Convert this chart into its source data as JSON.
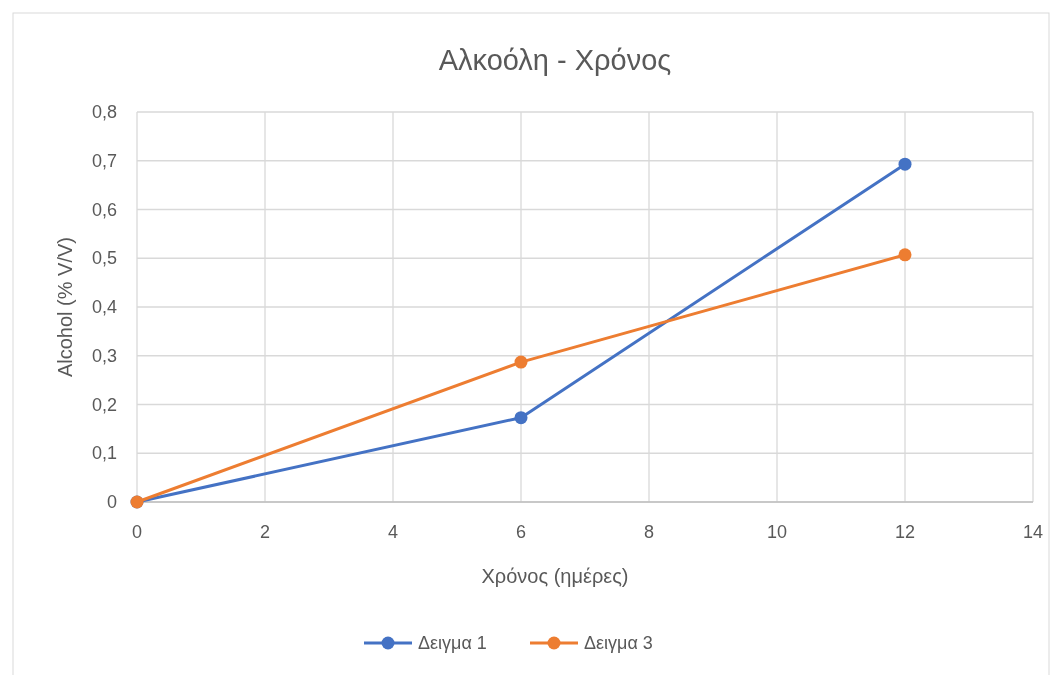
{
  "chart_data": {
    "type": "line",
    "title": "Αλκοόλη - Χρόνος",
    "xlabel": "Χρόνος (ημέρες)",
    "ylabel": "Alcohol (% V/V)",
    "xlim": [
      0,
      14
    ],
    "xticks": [
      0,
      2,
      4,
      6,
      8,
      10,
      12,
      14
    ],
    "ylim": [
      0,
      0.8
    ],
    "yticks": [
      {
        "value": 0,
        "label": "0"
      },
      {
        "value": 0.1,
        "label": "0,1"
      },
      {
        "value": 0.2,
        "label": "0,2"
      },
      {
        "value": 0.3,
        "label": "0,3"
      },
      {
        "value": 0.4,
        "label": "0,4"
      },
      {
        "value": 0.5,
        "label": "0,5"
      },
      {
        "value": 0.6,
        "label": "0,6"
      },
      {
        "value": 0.7,
        "label": "0,7"
      },
      {
        "value": 0.8,
        "label": "0,8"
      }
    ],
    "grid": true,
    "legend": "bottom",
    "marker": "circle",
    "line_style": "solid",
    "series": [
      {
        "name": "Δειγμα 1",
        "color": "#4472c4",
        "x": [
          0,
          6,
          12
        ],
        "values": [
          0,
          0.173,
          0.693
        ]
      },
      {
        "name": "Δειγμα 3",
        "color": "#ed7d31",
        "x": [
          0,
          6,
          12
        ],
        "values": [
          0,
          0.287,
          0.507
        ]
      }
    ]
  }
}
